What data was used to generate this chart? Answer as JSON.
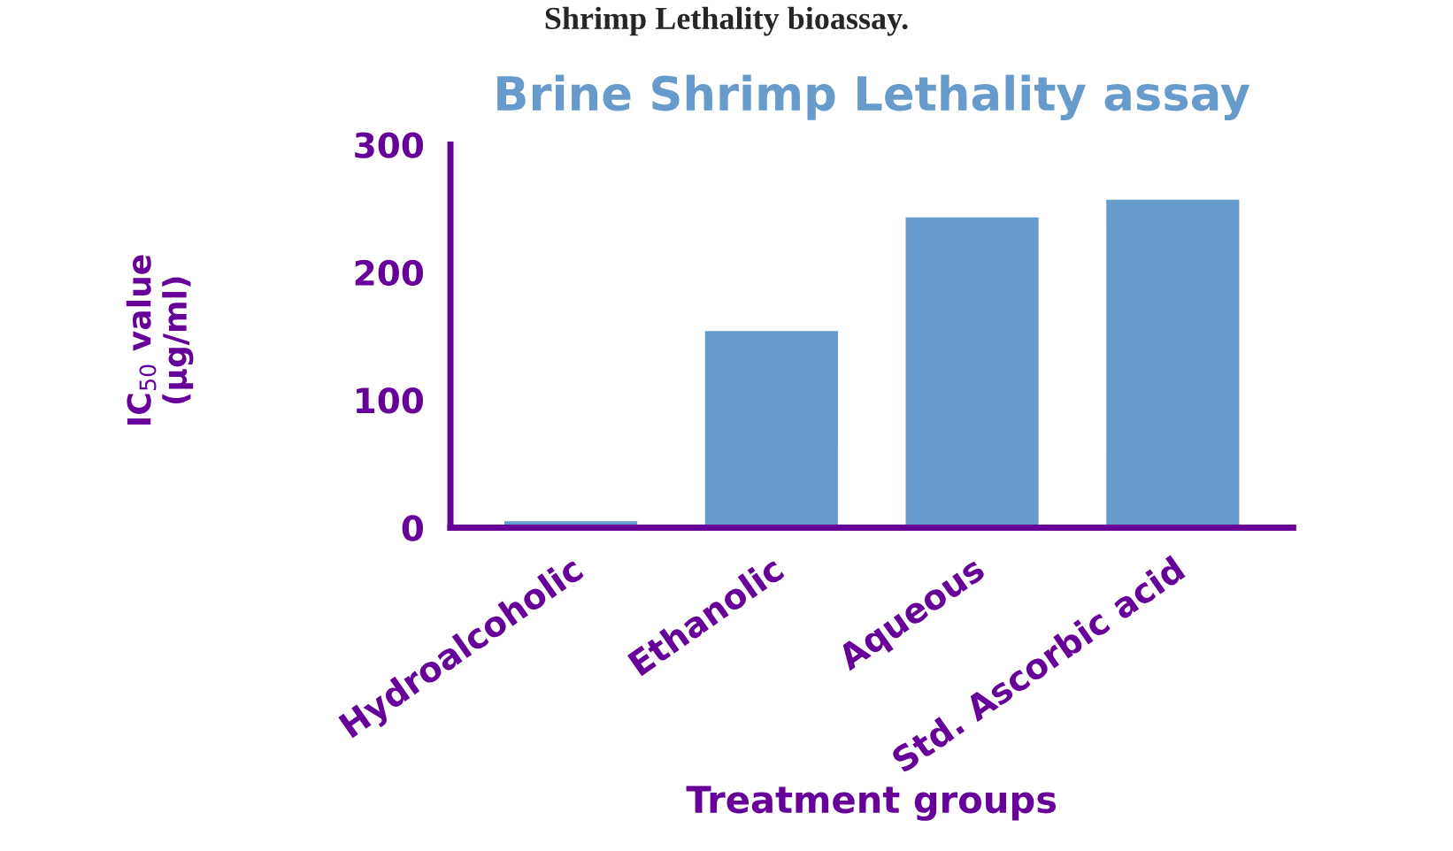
{
  "chart_data": {
    "type": "bar",
    "title": "Brine Shrimp Lethality assay",
    "xlabel": "Treatment groups",
    "ylabel": "IC$_{50}$ value\n(µg/ml)",
    "annotations": [
      "Shrimp Lethality bioassay."
    ],
    "categories": [
      "Hydroalcoholic",
      "Ethanolic",
      "Aqueous",
      "Std. Ascorbic acid"
    ],
    "values": [
      4,
      153,
      242,
      256
    ],
    "color": "#669bcc",
    "ylim": [
      0,
      300
    ],
    "yticks": [
      0,
      100,
      200,
      300
    ],
    "grid": false
  }
}
